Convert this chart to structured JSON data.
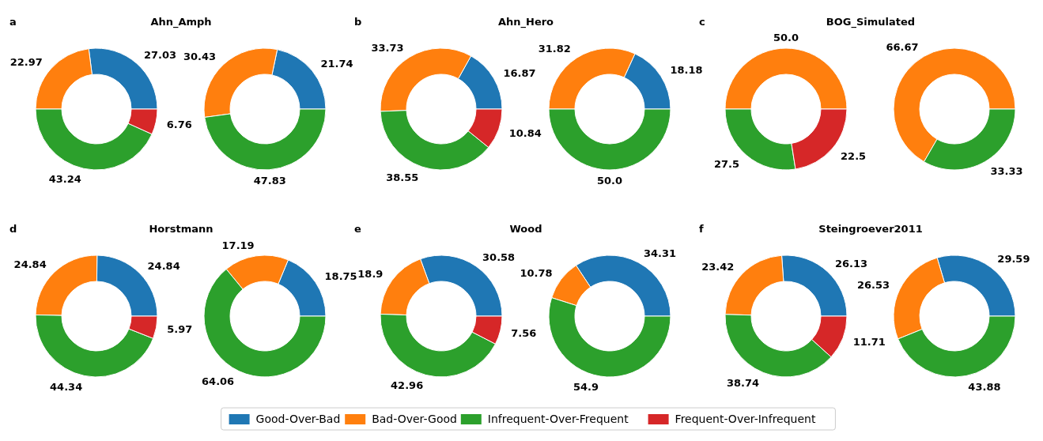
{
  "chart_data": [
    {
      "type": "donut",
      "title": "Ahn_Amph",
      "annotations": [
        "a"
      ],
      "legend": "bottom",
      "categories": [
        "Good-Over-Bad",
        "Bad-Over-Good",
        "Infrequent-Over-Frequent",
        "Frequent-Over-Infrequent"
      ],
      "values": [
        27.03,
        22.97,
        43.24,
        6.76
      ],
      "value_labels": [
        "27.03",
        "22.97",
        "43.24",
        "6.76"
      ],
      "colors": [
        "#1f77b4",
        "#ff7f0e",
        "#2ca02c",
        "#d62728"
      ]
    },
    {
      "type": "donut",
      "categories": [
        null,
        null,
        null
      ],
      "values": [
        21.74,
        30.43,
        47.83
      ],
      "value_labels": [
        "21.74",
        "30.43",
        "47.83"
      ],
      "colors": [
        "#1f77b4",
        "#ff7f0e",
        "#2ca02c"
      ]
    },
    {
      "type": "donut",
      "title": "Ahn_Hero",
      "annotations": [
        "b"
      ],
      "categories": [
        null,
        null,
        null,
        null
      ],
      "values": [
        16.87,
        33.73,
        38.55,
        10.84
      ],
      "value_labels": [
        "16.87",
        "33.73",
        "38.55",
        "10.84"
      ],
      "colors": [
        "#1f77b4",
        "#ff7f0e",
        "#2ca02c",
        "#d62728"
      ]
    },
    {
      "type": "donut",
      "categories": [
        null,
        null,
        null
      ],
      "values": [
        18.18,
        31.82,
        50.0
      ],
      "value_labels": [
        "18.18",
        "31.82",
        "50.0"
      ],
      "colors": [
        "#1f77b4",
        "#ff7f0e",
        "#2ca02c"
      ]
    },
    {
      "type": "donut",
      "title": "BOG_Simulated",
      "annotations": [
        "c"
      ],
      "categories": [
        null,
        null,
        null
      ],
      "values": [
        50.0,
        27.5,
        22.5
      ],
      "value_labels": [
        "50.0",
        "27.5",
        "22.5"
      ],
      "colors": [
        "#ff7f0e",
        "#2ca02c",
        "#d62728"
      ]
    },
    {
      "type": "donut",
      "categories": [
        null,
        null
      ],
      "values": [
        66.67,
        33.33
      ],
      "value_labels": [
        "66.67",
        "33.33"
      ],
      "colors": [
        "#ff7f0e",
        "#2ca02c"
      ]
    },
    {
      "type": "donut",
      "title": "Horstmann",
      "annotations": [
        "d"
      ],
      "categories": [
        null,
        null,
        null,
        null
      ],
      "values": [
        24.84,
        24.84,
        44.34,
        5.97
      ],
      "value_labels": [
        "24.84",
        "24.84",
        "44.34",
        "5.97"
      ],
      "colors": [
        "#1f77b4",
        "#ff7f0e",
        "#2ca02c",
        "#d62728"
      ]
    },
    {
      "type": "donut",
      "categories": [
        null,
        null,
        null
      ],
      "values": [
        18.75,
        17.19,
        64.06
      ],
      "value_labels": [
        "18.75",
        "17.19",
        "64.06"
      ],
      "colors": [
        "#1f77b4",
        "#ff7f0e",
        "#2ca02c"
      ]
    },
    {
      "type": "donut",
      "title": "Wood",
      "annotations": [
        "e"
      ],
      "categories": [
        null,
        null,
        null,
        null
      ],
      "values": [
        30.58,
        18.9,
        42.96,
        7.56
      ],
      "value_labels": [
        "30.58",
        "18.9",
        "42.96",
        "7.56"
      ],
      "colors": [
        "#1f77b4",
        "#ff7f0e",
        "#2ca02c",
        "#d62728"
      ]
    },
    {
      "type": "donut",
      "categories": [
        null,
        null,
        null
      ],
      "values": [
        34.31,
        10.78,
        54.9
      ],
      "value_labels": [
        "34.31",
        "10.78",
        "54.9"
      ],
      "colors": [
        "#1f77b4",
        "#ff7f0e",
        "#2ca02c"
      ]
    },
    {
      "type": "donut",
      "title": "Steingroever2011",
      "annotations": [
        "f"
      ],
      "categories": [
        null,
        null,
        null,
        null
      ],
      "values": [
        26.13,
        23.42,
        38.74,
        11.71
      ],
      "value_labels": [
        "26.13",
        "23.42",
        "38.74",
        "11.71"
      ],
      "colors": [
        "#1f77b4",
        "#ff7f0e",
        "#2ca02c",
        "#d62728"
      ]
    },
    {
      "type": "donut",
      "categories": [
        null,
        null,
        null
      ],
      "values": [
        29.59,
        26.53,
        43.88
      ],
      "value_labels": [
        "29.59",
        "26.53",
        "43.88"
      ],
      "colors": [
        "#1f77b4",
        "#ff7f0e",
        "#2ca02c"
      ]
    }
  ]
}
